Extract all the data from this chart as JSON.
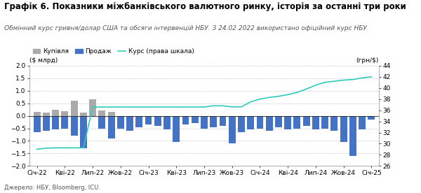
{
  "title": "Графік 6. Показники міжбанківського валютного ринку, історія за останні три роки",
  "subtitle": "Обмінний курс гривня/долар США та обсяги інтервенцій НБУ. З 24.02.2022 використано офіційний курс НБУ",
  "source": "Джерело: НБУ, Bloomberg, ICU.",
  "ylabel_left": "($ млрд)",
  "ylabel_right": "(грн/$)",
  "ylim_left": [
    -2.0,
    2.0
  ],
  "ylim_right": [
    26,
    44
  ],
  "legend_buy": "Купівля",
  "legend_sell": "Продаж",
  "legend_rate": "Курс (права шкала)",
  "bar_color_buy": "#aaaaaa",
  "bar_color_sell": "#4472c4",
  "line_color": "#2eccb8",
  "background_color": "#ffffff",
  "title_fontsize": 8.5,
  "subtitle_fontsize": 6.5,
  "tick_fontsize": 6.5,
  "source_fontsize": 6,
  "x_tick_labels": [
    "Січ-22",
    "Кві-22",
    "Лип-22",
    "Жов-22",
    "Січ-23",
    "Кві-23",
    "Лип-23",
    "Жов-23",
    "Січ-24",
    "Кві-24",
    "Лип-24",
    "Жов-24",
    "Січ-25"
  ],
  "x_tick_months": [
    0,
    3,
    6,
    9,
    12,
    15,
    18,
    21,
    24,
    27,
    30,
    33,
    36
  ],
  "yticks_left": [
    -2.0,
    -1.5,
    -1.0,
    -0.5,
    0.0,
    0.5,
    1.0,
    1.5,
    2.0
  ],
  "yticks_right": [
    26,
    28,
    30,
    32,
    34,
    36,
    38,
    40,
    42,
    44
  ],
  "buy_vals": [
    0.15,
    0.12,
    0.25,
    0.18,
    0.6,
    0.12,
    0.65,
    0.2,
    0.15,
    0,
    0,
    0,
    0,
    0,
    0,
    0,
    0,
    0,
    0,
    0,
    0,
    0,
    0,
    0,
    0,
    0,
    0,
    0,
    0,
    0,
    0,
    0,
    0,
    0,
    0,
    0,
    0
  ],
  "sell_vals": [
    -0.65,
    -0.6,
    -0.55,
    -0.5,
    -0.8,
    -1.3,
    -0.05,
    -0.5,
    -0.9,
    -0.5,
    -0.6,
    -0.45,
    -0.35,
    -0.4,
    -0.55,
    -1.05,
    -0.35,
    -0.3,
    -0.5,
    -0.45,
    -0.4,
    -1.1,
    -0.65,
    -0.55,
    -0.5,
    -0.6,
    -0.45,
    -0.55,
    -0.5,
    -0.4,
    -0.55,
    -0.5,
    -0.6,
    -1.05,
    -1.6,
    -0.55,
    -0.15
  ],
  "rate_vals": [
    29.0,
    29.2,
    29.25,
    29.25,
    29.25,
    29.25,
    36.57,
    36.57,
    36.57,
    36.57,
    36.57,
    36.57,
    36.57,
    36.57,
    36.57,
    36.57,
    36.57,
    36.57,
    36.57,
    36.8,
    36.8,
    36.6,
    36.6,
    37.5,
    38.0,
    38.3,
    38.5,
    38.8,
    39.2,
    39.8,
    40.5,
    41.0,
    41.2,
    41.4,
    41.5,
    41.8,
    42.0
  ]
}
